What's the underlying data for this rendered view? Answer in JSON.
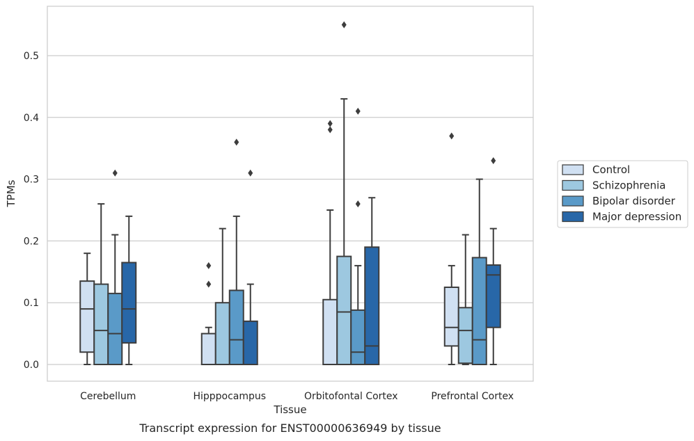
{
  "chart_data": {
    "type": "box",
    "xlabel": "Tissue",
    "ylabel": "TPMs",
    "caption": "Transcript expression for ENST00000636949 by tissue",
    "ylim": [
      -0.027,
      0.582
    ],
    "yticks": [
      0.0,
      0.1,
      0.2,
      0.3,
      0.4,
      0.5
    ],
    "ytick_labels": [
      "0.0",
      "0.1",
      "0.2",
      "0.3",
      "0.4",
      "0.5"
    ],
    "grid": "horizontal",
    "legend_position": "right",
    "categories": [
      "Cerebellum",
      "Hipppocampus",
      "Orbitofontal Cortex",
      "Prefrontal Cortex"
    ],
    "series": [
      {
        "name": "Control",
        "color": "#d0e0f2",
        "boxes": [
          {
            "whislo": 0.0,
            "q1": 0.02,
            "med": 0.09,
            "q3": 0.135,
            "whishi": 0.18,
            "fliers": []
          },
          {
            "whislo": 0.0,
            "q1": 0.0,
            "med": 0.0,
            "q3": 0.05,
            "whishi": 0.06,
            "fliers": [
              0.13,
              0.16
            ]
          },
          {
            "whislo": 0.0,
            "q1": 0.0,
            "med": 0.0,
            "q3": 0.105,
            "whishi": 0.25,
            "fliers": [
              0.38,
              0.39
            ]
          },
          {
            "whislo": 0.0,
            "q1": 0.03,
            "med": 0.06,
            "q3": 0.125,
            "whishi": 0.16,
            "fliers": [
              0.37
            ]
          }
        ]
      },
      {
        "name": "Schizophrenia",
        "color": "#9dc8e0",
        "boxes": [
          {
            "whislo": 0.0,
            "q1": 0.0,
            "med": 0.055,
            "q3": 0.13,
            "whishi": 0.26,
            "fliers": []
          },
          {
            "whislo": 0.0,
            "q1": 0.0,
            "med": 0.0,
            "q3": 0.1,
            "whishi": 0.22,
            "fliers": []
          },
          {
            "whislo": 0.0,
            "q1": 0.0,
            "med": 0.085,
            "q3": 0.175,
            "whishi": 0.43,
            "fliers": [
              0.55
            ]
          },
          {
            "whislo": 0.0,
            "q1": 0.002,
            "med": 0.055,
            "q3": 0.092,
            "whishi": 0.21,
            "fliers": []
          }
        ]
      },
      {
        "name": "Bipolar disorder",
        "color": "#5a9ac8",
        "boxes": [
          {
            "whislo": 0.0,
            "q1": 0.0,
            "med": 0.05,
            "q3": 0.115,
            "whishi": 0.21,
            "fliers": [
              0.31
            ]
          },
          {
            "whislo": 0.0,
            "q1": 0.0,
            "med": 0.04,
            "q3": 0.12,
            "whishi": 0.24,
            "fliers": [
              0.36
            ]
          },
          {
            "whislo": 0.0,
            "q1": 0.0,
            "med": 0.02,
            "q3": 0.088,
            "whishi": 0.16,
            "fliers": [
              0.26,
              0.41
            ]
          },
          {
            "whislo": 0.0,
            "q1": 0.0,
            "med": 0.04,
            "q3": 0.173,
            "whishi": 0.3,
            "fliers": []
          }
        ]
      },
      {
        "name": "Major depression",
        "color": "#2867a8",
        "boxes": [
          {
            "whislo": 0.0,
            "q1": 0.035,
            "med": 0.09,
            "q3": 0.165,
            "whishi": 0.24,
            "fliers": []
          },
          {
            "whislo": 0.0,
            "q1": 0.0,
            "med": 0.0,
            "q3": 0.07,
            "whishi": 0.13,
            "fliers": [
              0.31
            ]
          },
          {
            "whislo": 0.0,
            "q1": 0.0,
            "med": 0.03,
            "q3": 0.19,
            "whishi": 0.27,
            "fliers": []
          },
          {
            "whislo": 0.0,
            "q1": 0.06,
            "med": 0.145,
            "q3": 0.161,
            "whishi": 0.22,
            "fliers": [
              0.33
            ]
          }
        ]
      }
    ]
  }
}
